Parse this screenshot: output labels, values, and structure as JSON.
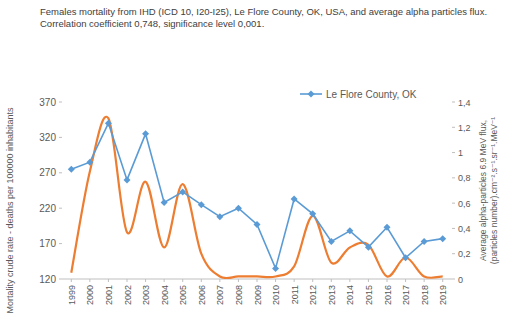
{
  "chart_data": {
    "type": "line",
    "title": "Females mortality from IHD (ICD 10, I20-I25), Le Flore County, OK, USA, and average alpha particles flux. Correlation coefficient 0,748, significance level 0,001.",
    "ylabel": "Mortality crude rate - deaths per 100000 inhabitants",
    "y2label": [
      "Average alpha-particles 6.9 MeV flux,",
      "(particles number).cm⁻².s⁻¹.sr⁻¹.MeV⁻¹"
    ],
    "categories": [
      "1999",
      "2000",
      "2001",
      "2002",
      "2003",
      "2004",
      "2005",
      "2006",
      "2007",
      "2008",
      "2009",
      "2010",
      "2011",
      "2012",
      "2013",
      "2014",
      "2015",
      "2016",
      "2017",
      "2018",
      "2019"
    ],
    "ylim": [
      120,
      370
    ],
    "yticks": [
      120,
      170,
      220,
      270,
      320,
      370
    ],
    "y2lim": [
      0,
      1.4
    ],
    "y2ticks": [
      0,
      {
        "value": 0.2,
        "label": "0,2"
      },
      {
        "value": 0.4,
        "label": "0,4"
      },
      {
        "value": 0.6,
        "label": "0,6"
      },
      {
        "value": 0.8,
        "label": "0,8"
      },
      1,
      {
        "value": 1.2,
        "label": "1,2"
      },
      {
        "value": 1.4,
        "label": "1,4"
      }
    ],
    "grid": false,
    "legend": "top-right",
    "series": [
      {
        "name": "Le Flore County, OK",
        "color": "#5b9bd5",
        "marker": "diamond",
        "line_style": "solid",
        "values": [
          275,
          285,
          340,
          260,
          325,
          228,
          243,
          225,
          208,
          220,
          197,
          135,
          233,
          212,
          173,
          188,
          165,
          193,
          150,
          173,
          177
        ]
      },
      {
        "color": "#ed7d31",
        "axis": "y2",
        "marker": "none",
        "line_style": "smooth",
        "values": [
          0.05,
          0.85,
          1.27,
          0.37,
          0.77,
          0.25,
          0.75,
          0.2,
          0.02,
          0.02,
          0.02,
          0.02,
          0.1,
          0.5,
          0.13,
          0.25,
          0.27,
          0.02,
          0.17,
          0.02,
          0.02
        ]
      }
    ]
  }
}
